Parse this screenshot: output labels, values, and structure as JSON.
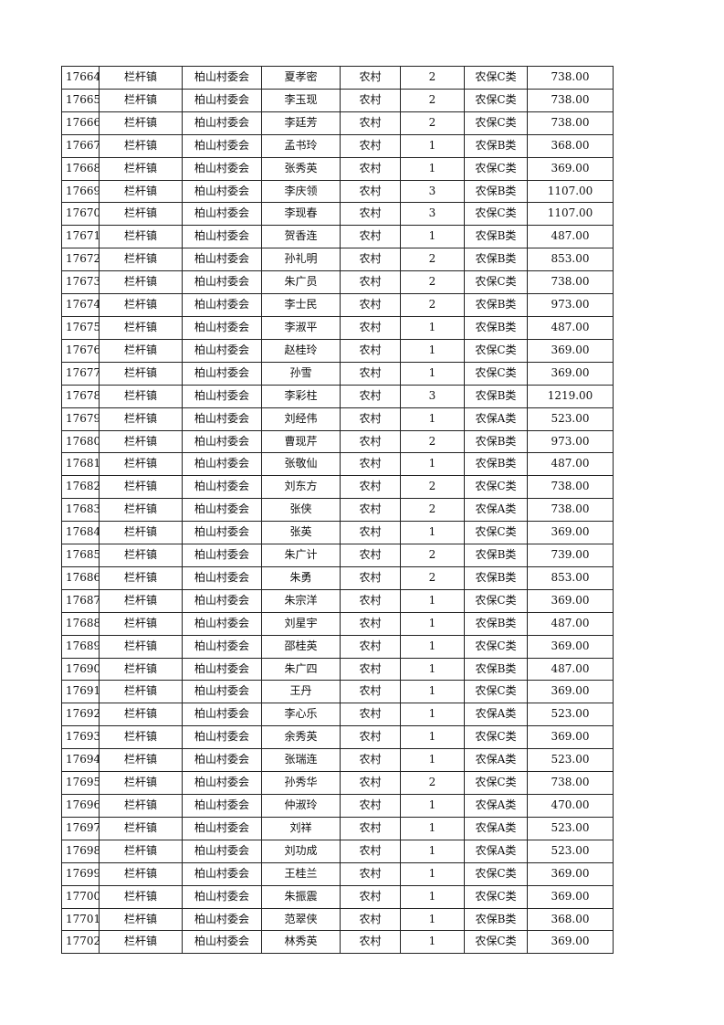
{
  "rows": [
    [
      "17664",
      "栏杆镇",
      "柏山村委会",
      "夏孝密",
      "农村",
      "2",
      "农保C类",
      "738.00"
    ],
    [
      "17665",
      "栏杆镇",
      "柏山村委会",
      "李玉现",
      "农村",
      "2",
      "农保C类",
      "738.00"
    ],
    [
      "17666",
      "栏杆镇",
      "柏山村委会",
      "李廷芳",
      "农村",
      "2",
      "农保C类",
      "738.00"
    ],
    [
      "17667",
      "栏杆镇",
      "柏山村委会",
      "孟书玲",
      "农村",
      "1",
      "农保B类",
      "368.00"
    ],
    [
      "17668",
      "栏杆镇",
      "柏山村委会",
      "张秀英",
      "农村",
      "1",
      "农保C类",
      "369.00"
    ],
    [
      "17669",
      "栏杆镇",
      "柏山村委会",
      "李庆领",
      "农村",
      "3",
      "农保B类",
      "1107.00"
    ],
    [
      "17670",
      "栏杆镇",
      "柏山村委会",
      "李现春",
      "农村",
      "3",
      "农保C类",
      "1107.00"
    ],
    [
      "17671",
      "栏杆镇",
      "柏山村委会",
      "贺香连",
      "农村",
      "1",
      "农保B类",
      "487.00"
    ],
    [
      "17672",
      "栏杆镇",
      "柏山村委会",
      "孙礼明",
      "农村",
      "2",
      "农保B类",
      "853.00"
    ],
    [
      "17673",
      "栏杆镇",
      "柏山村委会",
      "朱广员",
      "农村",
      "2",
      "农保C类",
      "738.00"
    ],
    [
      "17674",
      "栏杆镇",
      "柏山村委会",
      "李士民",
      "农村",
      "2",
      "农保B类",
      "973.00"
    ],
    [
      "17675",
      "栏杆镇",
      "柏山村委会",
      "李淑平",
      "农村",
      "1",
      "农保B类",
      "487.00"
    ],
    [
      "17676",
      "栏杆镇",
      "柏山村委会",
      "赵桂玲",
      "农村",
      "1",
      "农保C类",
      "369.00"
    ],
    [
      "17677",
      "栏杆镇",
      "柏山村委会",
      "孙雪",
      "农村",
      "1",
      "农保C类",
      "369.00"
    ],
    [
      "17678",
      "栏杆镇",
      "柏山村委会",
      "李彩柱",
      "农村",
      "3",
      "农保B类",
      "1219.00"
    ],
    [
      "17679",
      "栏杆镇",
      "柏山村委会",
      "刘经伟",
      "农村",
      "1",
      "农保A类",
      "523.00"
    ],
    [
      "17680",
      "栏杆镇",
      "柏山村委会",
      "曹现芹",
      "农村",
      "2",
      "农保B类",
      "973.00"
    ],
    [
      "17681",
      "栏杆镇",
      "柏山村委会",
      "张敬仙",
      "农村",
      "1",
      "农保B类",
      "487.00"
    ],
    [
      "17682",
      "栏杆镇",
      "柏山村委会",
      "刘东方",
      "农村",
      "2",
      "农保C类",
      "738.00"
    ],
    [
      "17683",
      "栏杆镇",
      "柏山村委会",
      "张侠",
      "农村",
      "2",
      "农保A类",
      "738.00"
    ],
    [
      "17684",
      "栏杆镇",
      "柏山村委会",
      "张英",
      "农村",
      "1",
      "农保C类",
      "369.00"
    ],
    [
      "17685",
      "栏杆镇",
      "柏山村委会",
      "朱广计",
      "农村",
      "2",
      "农保B类",
      "739.00"
    ],
    [
      "17686",
      "栏杆镇",
      "柏山村委会",
      "朱勇",
      "农村",
      "2",
      "农保B类",
      "853.00"
    ],
    [
      "17687",
      "栏杆镇",
      "柏山村委会",
      "朱宗洋",
      "农村",
      "1",
      "农保C类",
      "369.00"
    ],
    [
      "17688",
      "栏杆镇",
      "柏山村委会",
      "刘星宇",
      "农村",
      "1",
      "农保B类",
      "487.00"
    ],
    [
      "17689",
      "栏杆镇",
      "柏山村委会",
      "邵桂英",
      "农村",
      "1",
      "农保C类",
      "369.00"
    ],
    [
      "17690",
      "栏杆镇",
      "柏山村委会",
      "朱广四",
      "农村",
      "1",
      "农保B类",
      "487.00"
    ],
    [
      "17691",
      "栏杆镇",
      "柏山村委会",
      "王丹",
      "农村",
      "1",
      "农保C类",
      "369.00"
    ],
    [
      "17692",
      "栏杆镇",
      "柏山村委会",
      "李心乐",
      "农村",
      "1",
      "农保A类",
      "523.00"
    ],
    [
      "17693",
      "栏杆镇",
      "柏山村委会",
      "余秀英",
      "农村",
      "1",
      "农保C类",
      "369.00"
    ],
    [
      "17694",
      "栏杆镇",
      "柏山村委会",
      "张瑞连",
      "农村",
      "1",
      "农保A类",
      "523.00"
    ],
    [
      "17695",
      "栏杆镇",
      "柏山村委会",
      "孙秀华",
      "农村",
      "2",
      "农保C类",
      "738.00"
    ],
    [
      "17696",
      "栏杆镇",
      "柏山村委会",
      "仲淑玲",
      "农村",
      "1",
      "农保A类",
      "470.00"
    ],
    [
      "17697",
      "栏杆镇",
      "柏山村委会",
      "刘祥",
      "农村",
      "1",
      "农保A类",
      "523.00"
    ],
    [
      "17698",
      "栏杆镇",
      "柏山村委会",
      "刘功成",
      "农村",
      "1",
      "农保A类",
      "523.00"
    ],
    [
      "17699",
      "栏杆镇",
      "柏山村委会",
      "王桂兰",
      "农村",
      "1",
      "农保C类",
      "369.00"
    ],
    [
      "17700",
      "栏杆镇",
      "柏山村委会",
      "朱振震",
      "农村",
      "1",
      "农保C类",
      "369.00"
    ],
    [
      "17701",
      "栏杆镇",
      "柏山村委会",
      "范翠侠",
      "农村",
      "1",
      "农保B类",
      "368.00"
    ],
    [
      "17702",
      "栏杆镇",
      "柏山村委会",
      "林秀英",
      "农村",
      "1",
      "农保C类",
      "369.00"
    ]
  ]
}
